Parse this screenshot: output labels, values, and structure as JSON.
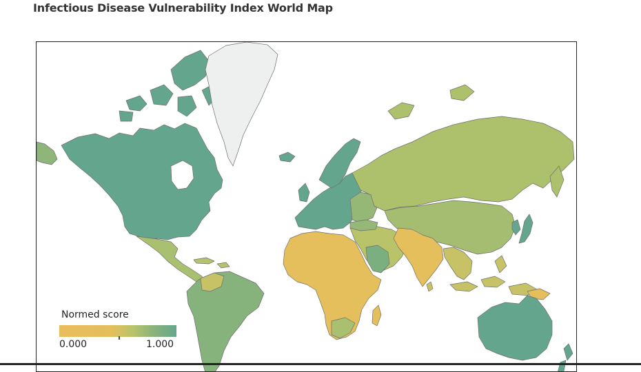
{
  "title": "Infectious Disease Vulnerability Index World Map",
  "legend": {
    "title": "Normed score",
    "min_label": "0.000",
    "max_label": "1.000",
    "min": 0,
    "max": 1
  },
  "colors": {
    "low": "#e8bd5b",
    "mid": "#adc06c",
    "high": "#64a68d",
    "no_data": "#eef0f0",
    "border": "#6e6e6e"
  },
  "regions": [
    {
      "name": "North America",
      "score": 0.95
    },
    {
      "name": "Greenland",
      "score": null
    },
    {
      "name": "Mexico and Central America",
      "score": 0.55
    },
    {
      "name": "South America",
      "score": 0.6
    },
    {
      "name": "Europe",
      "score": 0.9
    },
    {
      "name": "Russia",
      "score": 0.65
    },
    {
      "name": "Africa",
      "score": 0.08
    },
    {
      "name": "Middle East",
      "score": 0.45
    },
    {
      "name": "South Asia",
      "score": 0.1
    },
    {
      "name": "Central and East Asia",
      "score": 0.6
    },
    {
      "name": "Southeast Asia",
      "score": 0.3
    },
    {
      "name": "Japan",
      "score": 0.95
    },
    {
      "name": "Australia",
      "score": 0.95
    },
    {
      "name": "New Zealand",
      "score": 0.95
    }
  ]
}
